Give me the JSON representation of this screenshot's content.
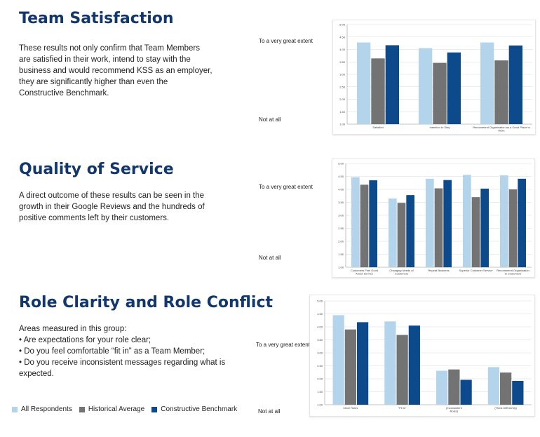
{
  "sections": [
    {
      "title": "Team Satisfaction",
      "body": [
        "These results not only confirm that Team Members",
        "are satisfied in their work, intend to stay with the",
        "business and would recommend KSS as an employer,",
        "they are significantly higher than even the",
        "Constructive Benchmark."
      ],
      "scale_top": "To a very great extent",
      "scale_bottom": "Not at all"
    },
    {
      "title": "Quality of Service",
      "body": [
        "A direct outcome of these results can be seen in the",
        "growth in their Google Reviews and the hundreds of",
        "positive comments left by their customers."
      ],
      "scale_top": "To a very great extent",
      "scale_bottom": "Not at all"
    },
    {
      "title": "Role Clarity and Role Conflict",
      "body": [
        "Areas measured in this group:",
        "• Are expectations for your role clear;",
        "• Do you feel comfortable “fit in” as a Team Member;",
        "• Do you receive inconsistent messages regarding what is",
        "expected."
      ],
      "scale_top": "To a very great extent",
      "scale_bottom": "Not at all"
    }
  ],
  "legend": [
    {
      "label": "All Respondents",
      "color": "#b3d4ea"
    },
    {
      "label": "Historical Average",
      "color": "#737373"
    },
    {
      "label": "Constructive Benchmark",
      "color": "#0d4a8c"
    }
  ],
  "chart_data": [
    {
      "type": "bar",
      "categories": [
        "Satisfied",
        "Intention to Stay",
        [
          "Recommend Organisation as a Good Place to",
          "Work"
        ]
      ],
      "series": [
        {
          "name": "All Respondents",
          "values": [
            4.28,
            4.05,
            4.28
          ]
        },
        {
          "name": "Historical Average",
          "values": [
            3.64,
            3.46,
            3.56
          ]
        },
        {
          "name": "Constructive Benchmark",
          "values": [
            4.17,
            3.88,
            4.16
          ]
        }
      ],
      "ylim": [
        1.0,
        5.0
      ],
      "yticks": [
        "1.00",
        "1.50",
        "2.00",
        "2.50",
        "3.00",
        "3.50",
        "4.00",
        "4.50",
        "5.00"
      ],
      "grid": true
    },
    {
      "type": "bar",
      "categories": [
        [
          "Customers Feel Good",
          "About Service"
        ],
        [
          "Changing Needs of",
          "Customers"
        ],
        "Repeat Business",
        "Superior Customer Service",
        [
          "Recommend Organisation",
          "to Customers"
        ]
      ],
      "series": [
        {
          "name": "All Respondents",
          "values": [
            4.47,
            3.65,
            4.41,
            4.56,
            4.54
          ]
        },
        {
          "name": "Historical Average",
          "values": [
            4.18,
            3.48,
            4.04,
            3.7,
            4.0
          ]
        },
        {
          "name": "Constructive Benchmark",
          "values": [
            4.35,
            3.78,
            4.36,
            4.03,
            4.41
          ]
        }
      ],
      "ylim": [
        1.0,
        5.0
      ],
      "yticks": [
        "1.00",
        "1.50",
        "2.00",
        "2.50",
        "3.00",
        "3.50",
        "4.00",
        "4.50",
        "5.00"
      ],
      "grid": true
    },
    {
      "type": "bar",
      "categories": [
        "Clear Roles",
        "\"Fit In\"",
        [
          "(Inconsistent",
          "Roles)"
        ],
        "(Think Differently)"
      ],
      "series": [
        {
          "name": "All Respondents",
          "values": [
            4.45,
            4.21,
            2.31,
            2.45
          ]
        },
        {
          "name": "Historical Average",
          "values": [
            3.9,
            3.69,
            2.36,
            2.24
          ]
        },
        {
          "name": "Constructive Benchmark",
          "values": [
            4.18,
            4.05,
            1.96,
            1.92
          ]
        }
      ],
      "ylim": [
        1.0,
        5.0
      ],
      "yticks": [
        "1.00",
        "1.50",
        "2.00",
        "2.50",
        "3.00",
        "3.50",
        "4.00",
        "4.50",
        "5.00"
      ],
      "grid": true
    }
  ]
}
